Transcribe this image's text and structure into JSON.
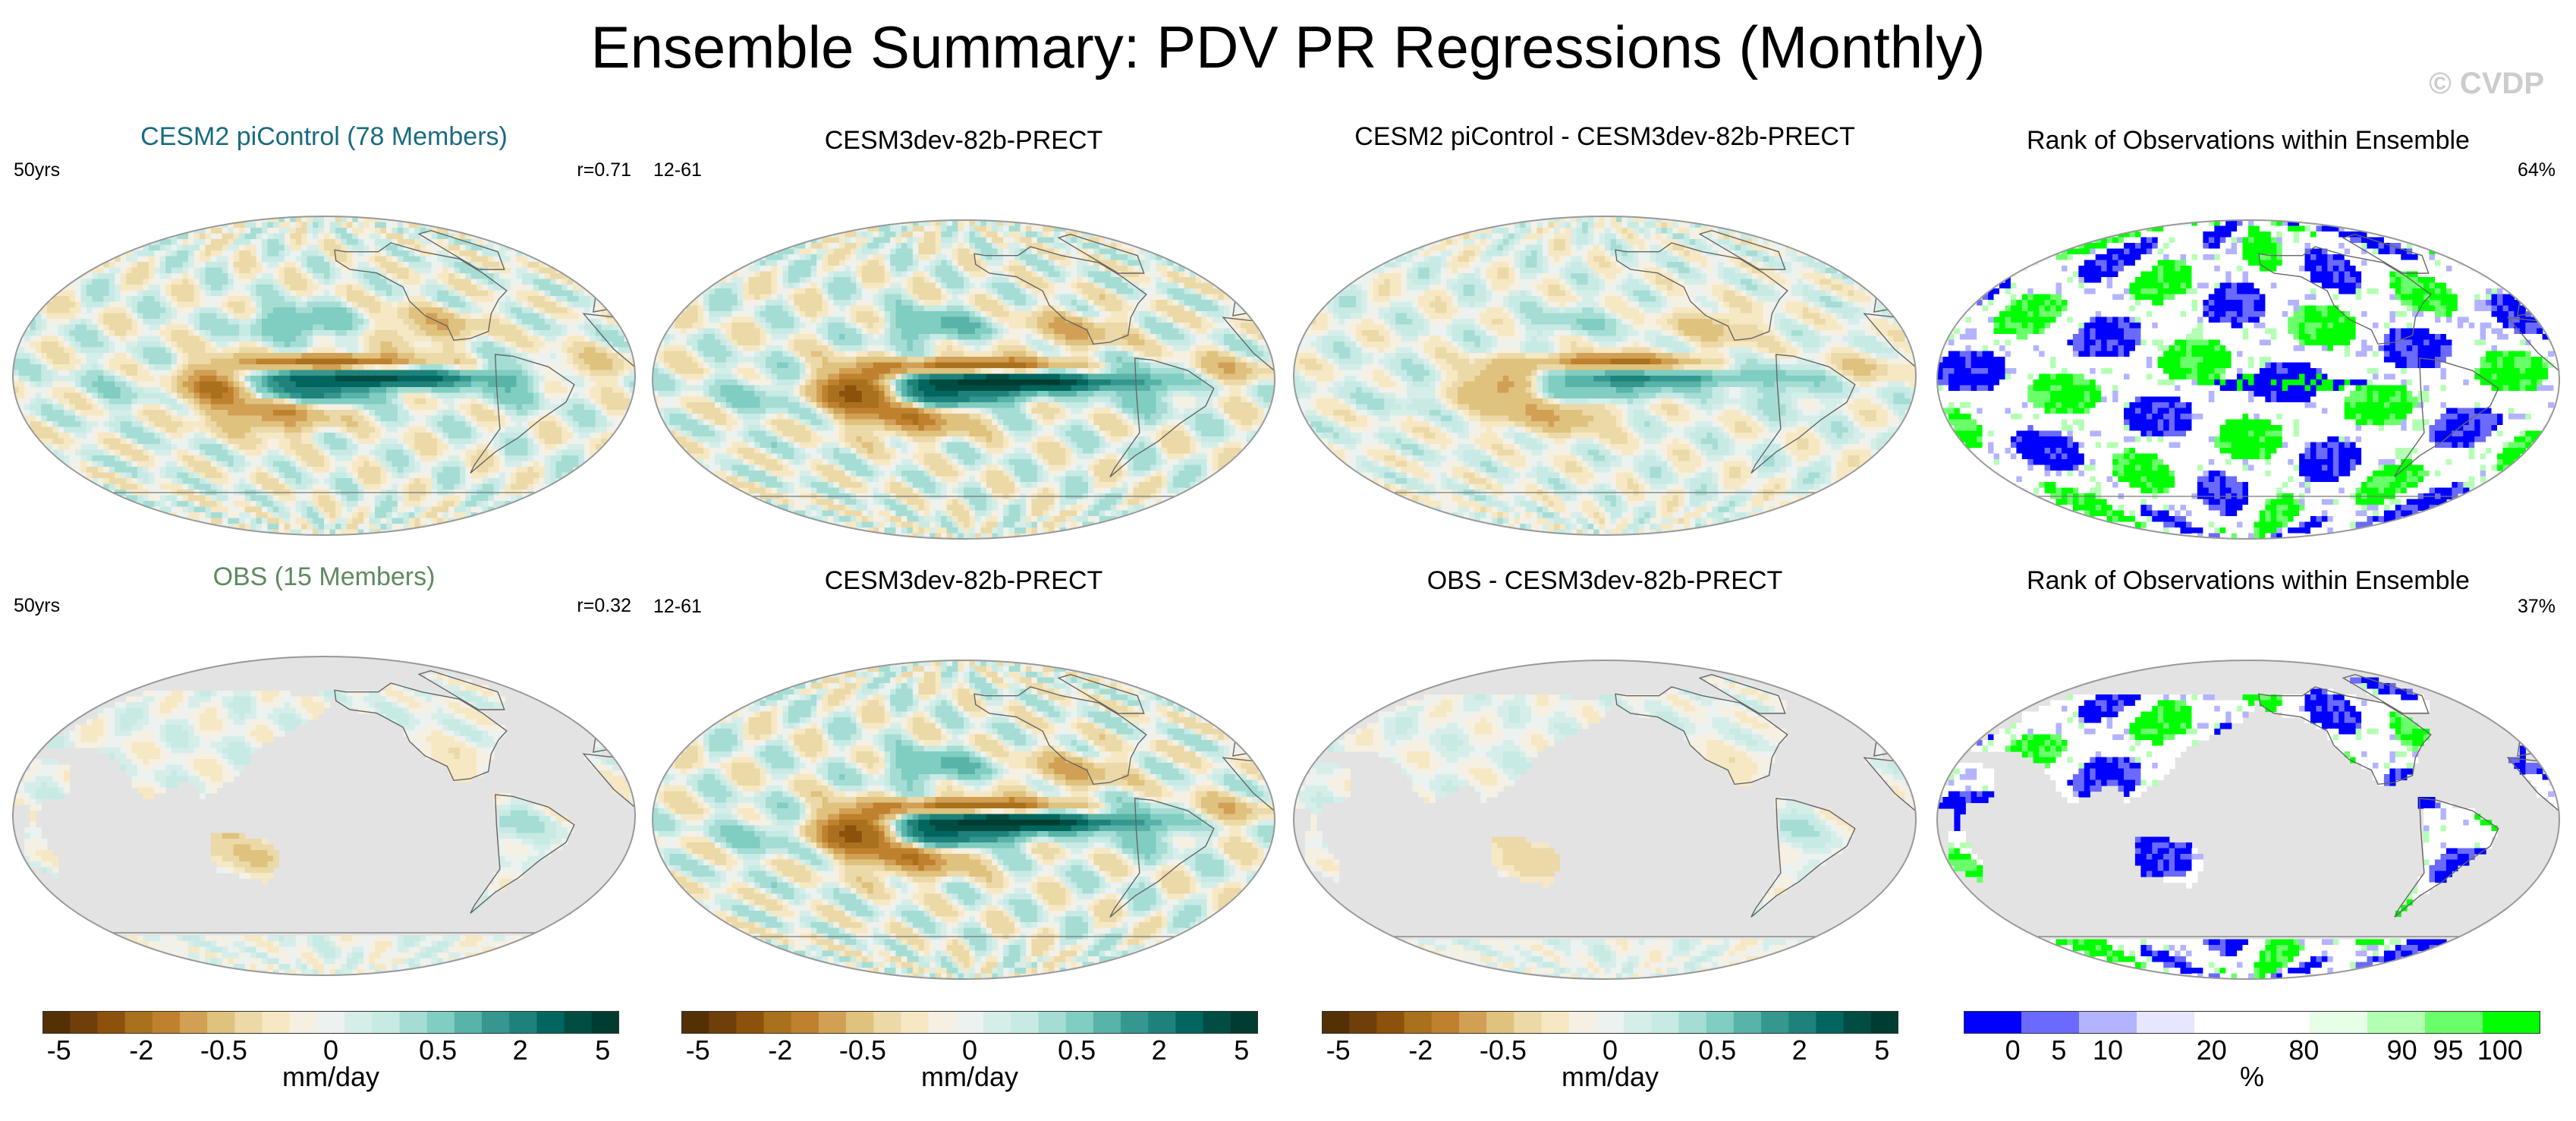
{
  "title": "Ensemble Summary: PDV PR Regressions (Monthly)",
  "watermark": "© CVDP",
  "colors": {
    "ocean_gray": "#e3e3e3",
    "title_ensemble": "#1a6b80",
    "title_obs": "#5e8a5e",
    "rank_low": "#0000ff",
    "rank_high": "#00ff00"
  },
  "chart_data": [
    {
      "type": "heatmap",
      "id": "p1",
      "title": "CESM2 piControl (78 Members)",
      "left_label": "50yrs",
      "right_label": "r=0.71",
      "field": "ens",
      "units": "mm/day"
    },
    {
      "type": "heatmap",
      "id": "p2",
      "title": "CESM3dev-82b-PRECT",
      "left_label": "12-61",
      "right_label": "",
      "field": "model",
      "units": "mm/day"
    },
    {
      "type": "heatmap",
      "id": "p3",
      "title": "CESM2 piControl - CESM3dev-82b-PRECT",
      "left_label": "",
      "right_label": "",
      "field": "diff",
      "units": "mm/day"
    },
    {
      "type": "heatmap",
      "id": "p4",
      "title": "Rank of Observations within Ensemble",
      "left_label": "",
      "right_label": "64%",
      "field": "rank_global",
      "units": "%"
    },
    {
      "type": "heatmap",
      "id": "p5",
      "title": "OBS (15 Members)",
      "left_label": "50yrs",
      "right_label": "r=0.32",
      "field": "obs",
      "units": "mm/day"
    },
    {
      "type": "heatmap",
      "id": "p6",
      "title": "CESM3dev-82b-PRECT",
      "left_label": "12-61",
      "right_label": "",
      "field": "model",
      "units": "mm/day"
    },
    {
      "type": "heatmap",
      "id": "p7",
      "title": "OBS - CESM3dev-82b-PRECT",
      "left_label": "",
      "right_label": "",
      "field": "obsdiff",
      "units": "mm/day"
    },
    {
      "type": "heatmap",
      "id": "p8",
      "title": "Rank of Observations within Ensemble",
      "left_label": "",
      "right_label": "37%",
      "field": "rank_land",
      "units": "%"
    }
  ],
  "colorbars": [
    {
      "kind": "precip",
      "units": "mm/day",
      "colors": [
        "#543005",
        "#6e3f0b",
        "#8c510a",
        "#a9701e",
        "#bf812d",
        "#d1a055",
        "#dfc27d",
        "#ebd9a8",
        "#f6e8c3",
        "#f5f0e2",
        "#ebf2f0",
        "#d6eee9",
        "#c7eae5",
        "#a5ddd4",
        "#80cdc1",
        "#58b3a8",
        "#35978f",
        "#1d8279",
        "#01665e",
        "#014d44",
        "#003c30"
      ],
      "tick_labels": [
        "-5",
        "-2",
        "-0.5",
        "0",
        "0.5",
        "2",
        "5"
      ],
      "tick_boxes": [
        0.6,
        3.6,
        6.6,
        10.5,
        14.4,
        17.4,
        20.4
      ]
    },
    {
      "kind": "rank",
      "units": "%",
      "colors": [
        "#0000ff",
        "#6a6aff",
        "#b3b3ff",
        "#e6e6ff",
        "#ffffff",
        "#ffffff",
        "#e6ffe6",
        "#b3ffb3",
        "#6aff6a",
        "#00ff00"
      ],
      "tick_labels": [
        "0",
        "5",
        "10",
        "20",
        "80",
        "90",
        "95",
        "100"
      ],
      "tick_boxes": [
        0.85,
        1.65,
        2.5,
        4.3,
        5.9,
        7.6,
        8.4,
        9.3
      ]
    }
  ]
}
